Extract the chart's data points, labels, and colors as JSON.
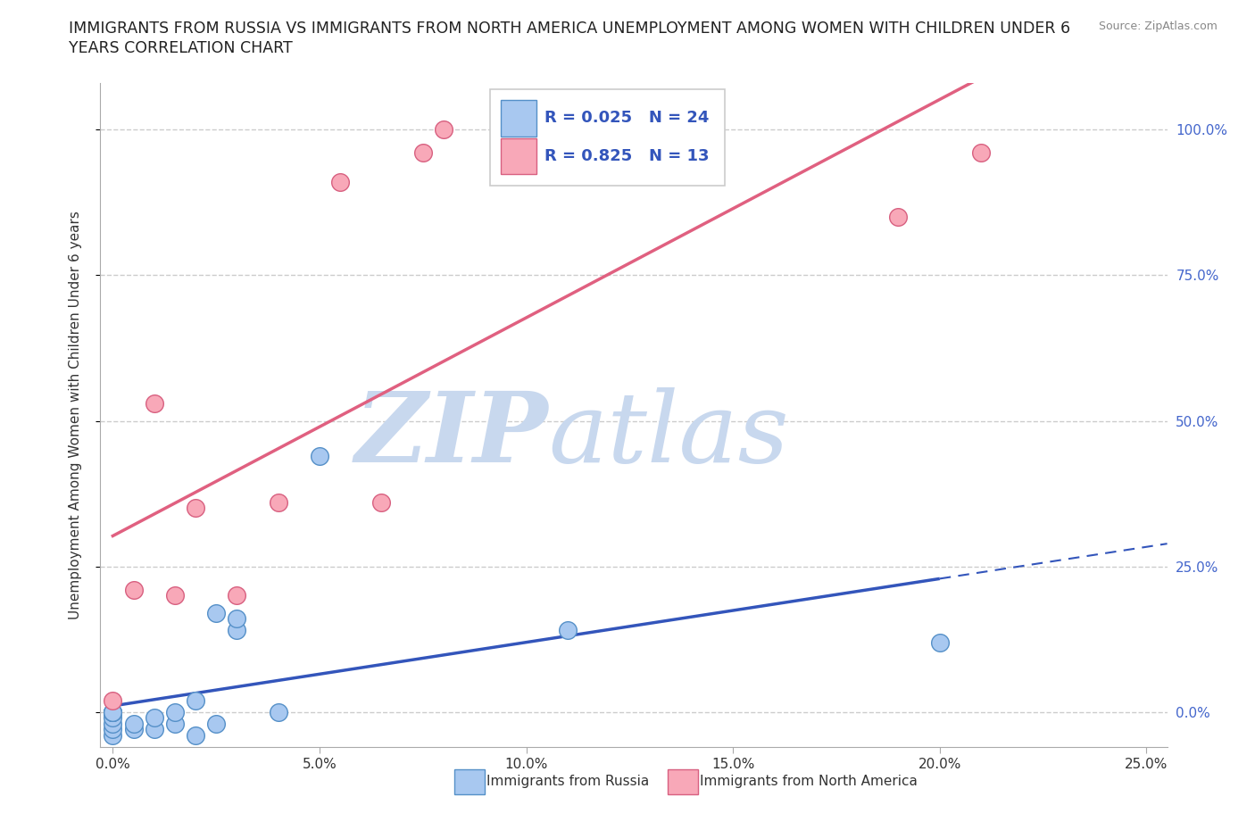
{
  "title_line1": "IMMIGRANTS FROM RUSSIA VS IMMIGRANTS FROM NORTH AMERICA UNEMPLOYMENT AMONG WOMEN WITH CHILDREN UNDER 6",
  "title_line2": "YEARS CORRELATION CHART",
  "source": "Source: ZipAtlas.com",
  "ylabel": "Unemployment Among Women with Children Under 6 years",
  "xlim": [
    -0.003,
    0.255
  ],
  "ylim": [
    -0.06,
    1.08
  ],
  "xtick_labels": [
    "0.0%",
    "5.0%",
    "10.0%",
    "15.0%",
    "20.0%",
    "25.0%"
  ],
  "xtick_vals": [
    0.0,
    0.05,
    0.1,
    0.15,
    0.2,
    0.25
  ],
  "ytick_labels": [
    "0.0%",
    "25.0%",
    "50.0%",
    "75.0%",
    "100.0%"
  ],
  "ytick_vals": [
    0.0,
    0.25,
    0.5,
    0.75,
    1.0
  ],
  "russia_color": "#a8c8f0",
  "russia_edge_color": "#5590c8",
  "north_america_color": "#f8a8b8",
  "north_america_edge_color": "#d86080",
  "russia_R": "R = 0.025",
  "russia_N": "N = 24",
  "north_america_R": "R = 0.825",
  "north_america_N": "N = 13",
  "russia_line_color": "#3355bb",
  "north_america_line_color": "#e06080",
  "watermark_zip": "ZIP",
  "watermark_atlas": "atlas",
  "watermark_color": "#c8d8ee",
  "background_color": "#ffffff",
  "grid_color": "#cccccc",
  "legend_text_color": "#3355bb",
  "russia_x": [
    0.0,
    0.0,
    0.0,
    0.0,
    0.0,
    0.0,
    0.0,
    0.0,
    0.005,
    0.005,
    0.01,
    0.01,
    0.015,
    0.015,
    0.02,
    0.02,
    0.025,
    0.025,
    0.03,
    0.03,
    0.04,
    0.05,
    0.11,
    0.2
  ],
  "russia_y": [
    -0.04,
    -0.03,
    -0.02,
    -0.01,
    0.0,
    0.0,
    0.0,
    0.0,
    -0.03,
    -0.02,
    -0.03,
    -0.01,
    -0.02,
    0.0,
    -0.04,
    0.02,
    -0.02,
    0.17,
    0.14,
    0.16,
    0.0,
    0.44,
    0.14,
    0.12
  ],
  "north_america_x": [
    0.0,
    0.005,
    0.01,
    0.015,
    0.02,
    0.03,
    0.04,
    0.055,
    0.065,
    0.075,
    0.08,
    0.19,
    0.21
  ],
  "north_america_y": [
    0.02,
    0.21,
    0.53,
    0.2,
    0.35,
    0.2,
    0.36,
    0.91,
    0.36,
    0.96,
    1.0,
    0.85,
    0.96
  ]
}
